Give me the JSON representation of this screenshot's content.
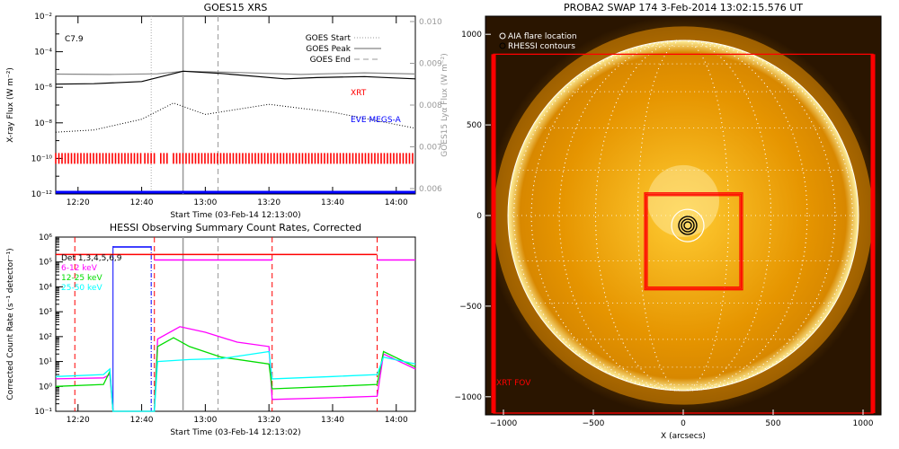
{
  "colors": {
    "red": "#ff0000",
    "blue": "#0000ff",
    "magenta": "#ff00ff",
    "green": "#00dd00",
    "cyan": "#00ffff",
    "gray": "#999999",
    "black": "#000000",
    "sun": "#f4a500"
  },
  "chart_data": [
    {
      "id": "goes",
      "type": "line",
      "title": "GOES15 XRS",
      "xlabel": "Start Time (03-Feb-14 12:13:00)",
      "ylabel": "X-ray Flux (W m⁻²)",
      "ylabel_right": "GOES15 Lyα Flux (W m⁻²)",
      "xlim": [
        "12:13",
        "14:06"
      ],
      "ylim": [
        1e-12,
        0.01
      ],
      "yscale": "log",
      "xticks": [
        "12:20",
        "12:40",
        "13:00",
        "13:20",
        "13:40",
        "14:00"
      ],
      "yticks": [
        "10⁻¹²",
        "10⁻¹⁰",
        "10⁻⁸",
        "10⁻⁶",
        "10⁻⁴",
        "10⁻²"
      ],
      "yticks_right": [
        "0.006",
        "0.007",
        "0.008",
        "0.009",
        "0.010"
      ],
      "annotation": "C7.9",
      "markers": {
        "goes_start": "12:43",
        "goes_peak": "12:53",
        "goes_end": "13:04"
      },
      "legend": [
        "GOES Start",
        "GOES Peak",
        "GOES End"
      ],
      "labels": {
        "xrt": "XRT",
        "eve": "EVE MEGS-A"
      },
      "series": [
        {
          "color": "#888888",
          "points": [
            [
              "12:13",
              5.5e-06
            ],
            [
              "12:30",
              5.3e-06
            ],
            [
              "12:45",
              5.7e-06
            ],
            [
              "12:53",
              8e-06
            ],
            [
              "13:10",
              6.8e-06
            ],
            [
              "13:30",
              5.3e-06
            ],
            [
              "13:50",
              6.5e-06
            ],
            [
              "14:06",
              5.6e-06
            ]
          ]
        },
        {
          "color": "#000000",
          "points": [
            [
              "12:13",
              1.5e-06
            ],
            [
              "12:25",
              1.6e-06
            ],
            [
              "12:40",
              2.1e-06
            ],
            [
              "12:53",
              8e-06
            ],
            [
              "13:05",
              6e-06
            ],
            [
              "13:25",
              3e-06
            ],
            [
              "13:35",
              3.5e-06
            ],
            [
              "13:50",
              4e-06
            ],
            [
              "14:06",
              3e-06
            ]
          ]
        },
        {
          "color": "#000000",
          "dotted": true,
          "points": [
            [
              "12:13",
              3e-09
            ],
            [
              "12:25",
              4e-09
            ],
            [
              "12:40",
              1.6e-08
            ],
            [
              "12:50",
              1.3e-07
            ],
            [
              "13:00",
              3e-08
            ],
            [
              "13:20",
              1.1e-07
            ],
            [
              "13:40",
              4e-08
            ],
            [
              "14:06",
              5e-09
            ]
          ]
        }
      ],
      "xrt_coverage": [
        [
          "12:13",
          "12:40"
        ],
        [
          "12:41",
          "12:44"
        ],
        [
          "12:46",
          "12:48"
        ],
        [
          "12:50",
          "14:06"
        ]
      ],
      "eve_level": 1e-12
    },
    {
      "id": "hessi",
      "type": "line",
      "title": "HESSI Observing Summary Count Rates, Corrected",
      "xlabel": "Start Time (03-Feb-14 12:13:02)",
      "ylabel": "Corrected Count Rate (s⁻¹ detector⁻¹)",
      "xlim": [
        "12:13",
        "14:06"
      ],
      "ylim": [
        0.1,
        1000000.0
      ],
      "yscale": "log",
      "xticks": [
        "12:20",
        "12:40",
        "13:00",
        "13:20",
        "13:40",
        "14:00"
      ],
      "yticks": [
        "10⁻¹",
        "10⁰",
        "10¹",
        "10²",
        "10³",
        "10⁴",
        "10⁵",
        "10⁶"
      ],
      "legend": [
        "Det 1,3,4,5,6,9",
        "6-12 keV",
        "12-25 keV",
        "25-50 keV"
      ],
      "legend_colors": [
        "#000000",
        "#ff00ff",
        "#00dd00",
        "#00ffff"
      ],
      "markers_red": [
        "12:19",
        "12:44",
        "13:21",
        "13:54"
      ],
      "markers_blue": [
        "12:31",
        "12:43"
      ],
      "gray_lines": {
        "solid": "12:53",
        "dashed": "13:04"
      },
      "series": [
        {
          "name": "6-12 keV",
          "color": "#ff00ff",
          "points": [
            [
              "12:13",
              2
            ],
            [
              "12:28",
              2.2
            ],
            [
              "12:30",
              3
            ],
            [
              "12:31",
              0.1
            ],
            [
              "12:44",
              0.1
            ],
            [
              "12:45",
              80
            ],
            [
              "12:52",
              250
            ],
            [
              "13:00",
              150
            ],
            [
              "13:10",
              60
            ],
            [
              "13:20",
              40
            ],
            [
              "13:21",
              0.3
            ],
            [
              "13:40",
              0.35
            ],
            [
              "13:54",
              0.4
            ],
            [
              "13:56",
              20
            ],
            [
              "14:06",
              5
            ]
          ]
        },
        {
          "name": "12-25 keV",
          "color": "#00dd00",
          "points": [
            [
              "12:13",
              1
            ],
            [
              "12:28",
              1.2
            ],
            [
              "12:30",
              4
            ],
            [
              "12:31",
              0.1
            ],
            [
              "12:44",
              0.1
            ],
            [
              "12:45",
              40
            ],
            [
              "12:50",
              90
            ],
            [
              "12:55",
              40
            ],
            [
              "13:05",
              15
            ],
            [
              "13:20",
              8
            ],
            [
              "13:21",
              0.8
            ],
            [
              "13:40",
              1
            ],
            [
              "13:54",
              1.2
            ],
            [
              "13:56",
              25
            ],
            [
              "14:06",
              6
            ]
          ]
        },
        {
          "name": "25-50 keV",
          "color": "#00ffff",
          "points": [
            [
              "12:13",
              2.5
            ],
            [
              "12:28",
              3
            ],
            [
              "12:30",
              5
            ],
            [
              "12:31",
              0.1
            ],
            [
              "12:44",
              0.1
            ],
            [
              "12:45",
              10
            ],
            [
              "12:55",
              12
            ],
            [
              "13:05",
              13
            ],
            [
              "13:20",
              25
            ],
            [
              "13:21",
              2
            ],
            [
              "13:40",
              2.5
            ],
            [
              "13:54",
              3
            ],
            [
              "13:56",
              15
            ],
            [
              "14:06",
              8
            ]
          ]
        },
        {
          "name": "flag_magenta",
          "color": "#ff00ff",
          "points": [
            [
              "12:44",
              120000.0
            ],
            [
              "13:21",
              120000.0
            ]
          ]
        },
        {
          "name": "flag_red",
          "color": "#ff0000",
          "points": [
            [
              "12:13",
              200000.0
            ],
            [
              "12:30",
              200000.0
            ],
            [
              "13:21",
              200000.0
            ],
            [
              "13:54",
              200000.0
            ]
          ]
        },
        {
          "name": "flag_magenta2",
          "color": "#ff00ff",
          "points": [
            [
              "13:54",
              120000.0
            ],
            [
              "14:06",
              120000.0
            ]
          ]
        },
        {
          "name": "flag_blue",
          "color": "#0000ff",
          "points": [
            [
              "12:31",
              400000.0
            ],
            [
              "12:43",
              400000.0
            ]
          ]
        }
      ]
    },
    {
      "id": "swap",
      "type": "image",
      "title": "PROBA2 SWAP 174   3-Feb-2014 13:02:15.576 UT",
      "xlabel": "X (arcsecs)",
      "xlim": [
        -1100,
        1100
      ],
      "ylim": [
        -1100,
        1100
      ],
      "xticks": [
        "−1000",
        "−500",
        "0",
        "500",
        "1000"
      ],
      "yticks": [
        "−1000",
        "−500",
        "0",
        "500",
        "1000"
      ],
      "legend": [
        "AIA flare location",
        "RHESSI contours"
      ],
      "corner_label": "XRT FOV",
      "solar_radius": 975,
      "flare": [
        25,
        -55
      ],
      "fov_outer": [
        [
          -1055,
          -1090
        ],
        [
          1055,
          890
        ]
      ],
      "fov_inner": [
        [
          -215,
          -410
        ],
        [
          330,
          125
        ]
      ]
    }
  ]
}
